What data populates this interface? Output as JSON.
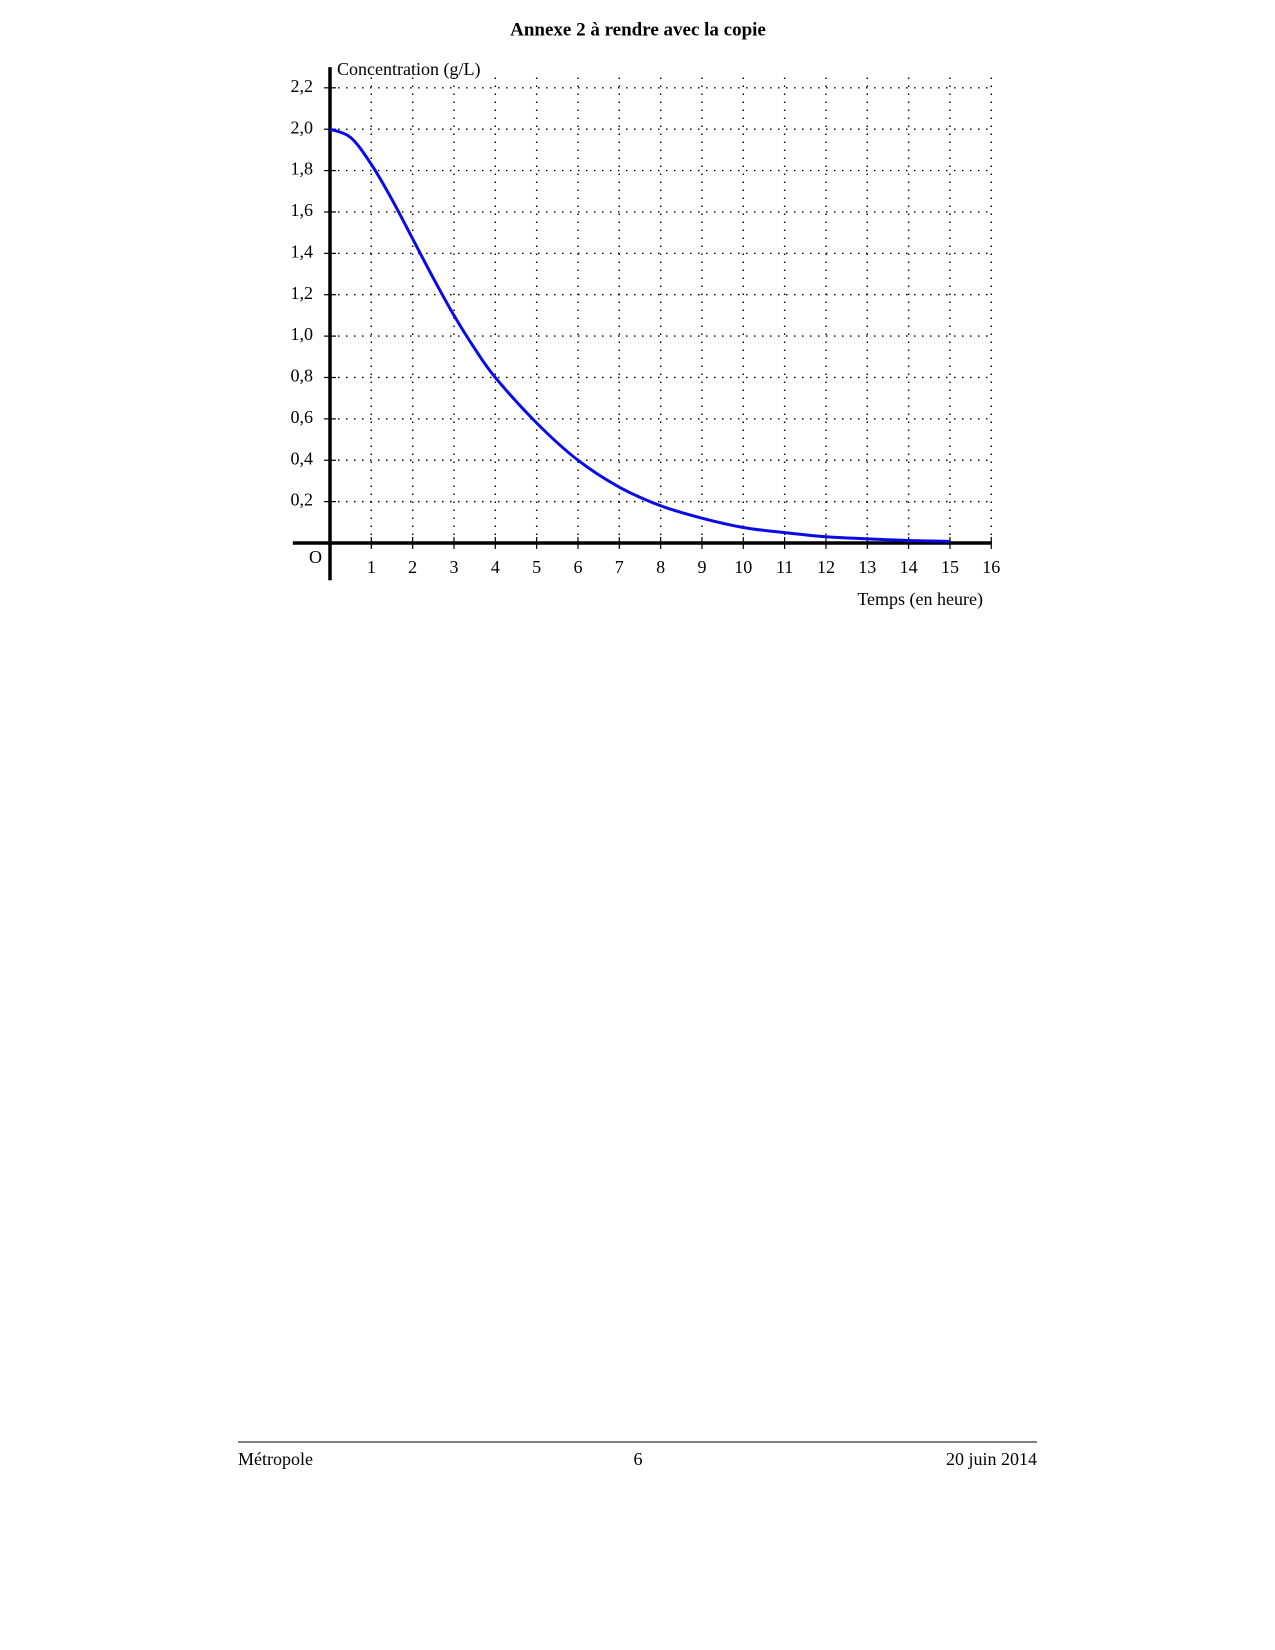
{
  "title": "Annexe 2 à rendre avec la copie",
  "chart_data": {
    "type": "line",
    "x_label": "Temps (en heure)",
    "y_label": "Concentration (g/L)",
    "origin_label": "O",
    "x": [
      0,
      0.5,
      1,
      1.5,
      2,
      2.5,
      3,
      3.5,
      4,
      5,
      6,
      7,
      8,
      9,
      10,
      11,
      12,
      13,
      14,
      15
    ],
    "series": [
      {
        "color": "#0a0ae6",
        "values": [
          2.0,
          1.96,
          1.83,
          1.66,
          1.47,
          1.28,
          1.1,
          0.94,
          0.8,
          0.58,
          0.4,
          0.27,
          0.18,
          0.12,
          0.075,
          0.05,
          0.03,
          0.02,
          0.012,
          0.008
        ]
      }
    ],
    "xlim": [
      -0.9,
      16
    ],
    "ylim": [
      -0.18,
      2.3
    ],
    "xticks": [
      1,
      2,
      3,
      4,
      5,
      6,
      7,
      8,
      9,
      10,
      11,
      12,
      13,
      14,
      15,
      16
    ],
    "yticks": [
      {
        "value": 0.2,
        "label": "0,2"
      },
      {
        "value": 0.4,
        "label": "0,4"
      },
      {
        "value": 0.6,
        "label": "0,6"
      },
      {
        "value": 0.8,
        "label": "0,8"
      },
      {
        "value": 1.0,
        "label": "1,0"
      },
      {
        "value": 1.2,
        "label": "1,2"
      },
      {
        "value": 1.4,
        "label": "1,4"
      },
      {
        "value": 1.6,
        "label": "1,6"
      },
      {
        "value": 1.8,
        "label": "1,8"
      },
      {
        "value": 2.0,
        "label": "2,0"
      },
      {
        "value": 2.2,
        "label": "2,2"
      }
    ],
    "grid": true
  },
  "footer": {
    "left": "Métropole",
    "center": "6",
    "right": "20 juin 2014"
  }
}
